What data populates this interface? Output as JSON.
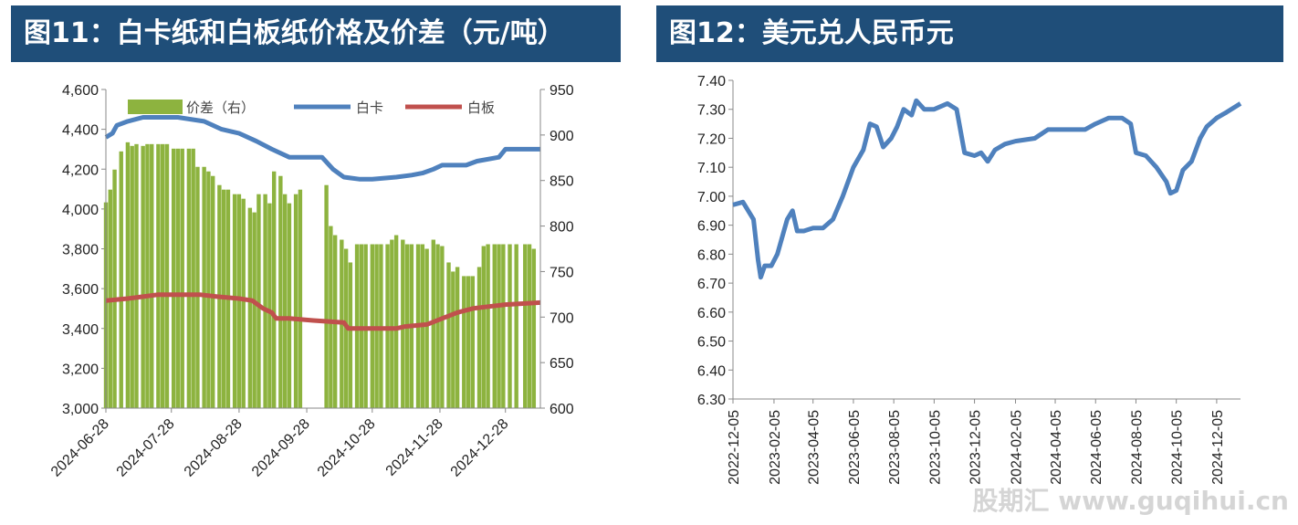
{
  "charts": [
    {
      "title": "图11：白卡纸和白板纸价格及价差（元/吨）",
      "chart_data": {
        "type": "bar+line",
        "title": "图11：白卡纸和白板纸价格及价差（元/吨）",
        "x_ticks": [
          "2024-06-28",
          "2024-07-28",
          "2024-08-28",
          "2024-09-28",
          "2024-10-28",
          "2024-11-28",
          "2024-12-28"
        ],
        "x_range": [
          "2024-06-28",
          "2025-01-13"
        ],
        "y_left": {
          "ticks": [
            "3,000",
            "3,200",
            "3,400",
            "3,600",
            "3,800",
            "4,000",
            "4,200",
            "4,400",
            "4,600"
          ],
          "range": [
            3000,
            4600
          ]
        },
        "y_right": {
          "ticks": [
            "600",
            "650",
            "700",
            "750",
            "800",
            "850",
            "900",
            "950"
          ],
          "range": [
            600,
            950
          ]
        },
        "legend_position": "top",
        "series": [
          {
            "name": "价差（右）",
            "kind": "bar",
            "axis": "right",
            "color": "#8db33f",
            "points": [
              [
                "2024-06-28",
                826
              ],
              [
                "2024-06-30",
                840
              ],
              [
                "2024-07-02",
                862
              ],
              [
                "2024-07-05",
                882
              ],
              [
                "2024-07-08",
                892
              ],
              [
                "2024-07-10",
                888
              ],
              [
                "2024-07-12",
                890
              ],
              [
                "2024-07-15",
                888
              ],
              [
                "2024-07-17",
                890
              ],
              [
                "2024-07-19",
                890
              ],
              [
                "2024-07-22",
                890
              ],
              [
                "2024-07-24",
                890
              ],
              [
                "2024-07-26",
                890
              ],
              [
                "2024-07-29",
                885
              ],
              [
                "2024-07-31",
                885
              ],
              [
                "2024-08-02",
                885
              ],
              [
                "2024-08-05",
                885
              ],
              [
                "2024-08-07",
                885
              ],
              [
                "2024-08-09",
                865
              ],
              [
                "2024-08-12",
                865
              ],
              [
                "2024-08-14",
                860
              ],
              [
                "2024-08-16",
                855
              ],
              [
                "2024-08-19",
                845
              ],
              [
                "2024-08-21",
                840
              ],
              [
                "2024-08-23",
                840
              ],
              [
                "2024-08-26",
                835
              ],
              [
                "2024-08-28",
                835
              ],
              [
                "2024-08-30",
                830
              ],
              [
                "2024-09-02",
                820
              ],
              [
                "2024-09-04",
                815
              ],
              [
                "2024-09-06",
                835
              ],
              [
                "2024-09-09",
                835
              ],
              [
                "2024-09-11",
                825
              ],
              [
                "2024-09-13",
                860
              ],
              [
                "2024-09-16",
                855
              ],
              [
                "2024-09-18",
                835
              ],
              [
                "2024-09-20",
                825
              ],
              [
                "2024-09-23",
                835
              ],
              [
                "2024-09-25",
                840
              ],
              [
                "2024-10-07",
                845
              ],
              [
                "2024-10-09",
                800
              ],
              [
                "2024-10-11",
                790
              ],
              [
                "2024-10-14",
                785
              ],
              [
                "2024-10-16",
                775
              ],
              [
                "2024-10-18",
                760
              ],
              [
                "2024-10-21",
                780
              ],
              [
                "2024-10-23",
                780
              ],
              [
                "2024-10-25",
                780
              ],
              [
                "2024-10-28",
                780
              ],
              [
                "2024-10-30",
                780
              ],
              [
                "2024-11-01",
                780
              ],
              [
                "2024-11-04",
                780
              ],
              [
                "2024-11-06",
                785
              ],
              [
                "2024-11-08",
                790
              ],
              [
                "2024-11-11",
                785
              ],
              [
                "2024-11-13",
                780
              ],
              [
                "2024-11-15",
                780
              ],
              [
                "2024-11-18",
                780
              ],
              [
                "2024-11-20",
                780
              ],
              [
                "2024-11-22",
                775
              ],
              [
                "2024-11-25",
                785
              ],
              [
                "2024-11-27",
                780
              ],
              [
                "2024-11-29",
                778
              ],
              [
                "2024-12-02",
                760
              ],
              [
                "2024-12-04",
                750
              ],
              [
                "2024-12-06",
                755
              ],
              [
                "2024-12-09",
                745
              ],
              [
                "2024-12-11",
                745
              ],
              [
                "2024-12-13",
                745
              ],
              [
                "2024-12-16",
                755
              ],
              [
                "2024-12-18",
                778
              ],
              [
                "2024-12-20",
                780
              ],
              [
                "2024-12-23",
                780
              ],
              [
                "2024-12-25",
                780
              ],
              [
                "2024-12-27",
                780
              ],
              [
                "2024-12-30",
                780
              ],
              [
                "2025-01-02",
                780
              ],
              [
                "2025-01-06",
                780
              ],
              [
                "2025-01-08",
                780
              ],
              [
                "2025-01-10",
                775
              ]
            ]
          },
          {
            "name": "白卡",
            "kind": "line",
            "axis": "left",
            "color": "#4f81bd",
            "points": [
              [
                "2024-06-28",
                4360
              ],
              [
                "2024-07-01",
                4380
              ],
              [
                "2024-07-03",
                4420
              ],
              [
                "2024-07-08",
                4440
              ],
              [
                "2024-07-15",
                4460
              ],
              [
                "2024-07-31",
                4460
              ],
              [
                "2024-08-12",
                4440
              ],
              [
                "2024-08-20",
                4400
              ],
              [
                "2024-08-28",
                4380
              ],
              [
                "2024-09-05",
                4340
              ],
              [
                "2024-09-12",
                4300
              ],
              [
                "2024-09-20",
                4260
              ],
              [
                "2024-09-25",
                4260
              ],
              [
                "2024-10-05",
                4260
              ],
              [
                "2024-10-10",
                4200
              ],
              [
                "2024-10-15",
                4160
              ],
              [
                "2024-10-22",
                4150
              ],
              [
                "2024-10-28",
                4150
              ],
              [
                "2024-11-08",
                4160
              ],
              [
                "2024-11-15",
                4170
              ],
              [
                "2024-11-20",
                4180
              ],
              [
                "2024-11-25",
                4200
              ],
              [
                "2024-11-29",
                4220
              ],
              [
                "2024-12-10",
                4220
              ],
              [
                "2024-12-15",
                4240
              ],
              [
                "2024-12-25",
                4260
              ],
              [
                "2024-12-28",
                4300
              ],
              [
                "2025-01-13",
                4300
              ]
            ]
          },
          {
            "name": "白板",
            "kind": "line",
            "axis": "left",
            "color": "#c0504d",
            "points": [
              [
                "2024-06-28",
                3540
              ],
              [
                "2024-07-08",
                3550
              ],
              [
                "2024-07-15",
                3560
              ],
              [
                "2024-07-22",
                3570
              ],
              [
                "2024-08-10",
                3570
              ],
              [
                "2024-08-18",
                3560
              ],
              [
                "2024-08-28",
                3550
              ],
              [
                "2024-09-03",
                3540
              ],
              [
                "2024-09-08",
                3500
              ],
              [
                "2024-09-12",
                3480
              ],
              [
                "2024-09-14",
                3450
              ],
              [
                "2024-09-20",
                3450
              ],
              [
                "2024-10-01",
                3440
              ],
              [
                "2024-10-15",
                3430
              ],
              [
                "2024-10-17",
                3400
              ],
              [
                "2024-11-08",
                3400
              ],
              [
                "2024-11-12",
                3410
              ],
              [
                "2024-11-22",
                3420
              ],
              [
                "2024-11-29",
                3450
              ],
              [
                "2024-12-06",
                3480
              ],
              [
                "2024-12-13",
                3500
              ],
              [
                "2024-12-20",
                3510
              ],
              [
                "2024-12-28",
                3520
              ],
              [
                "2025-01-13",
                3530
              ]
            ]
          }
        ]
      }
    },
    {
      "title": "图12：美元兑人民币元",
      "chart_data": {
        "type": "line",
        "title": "图12：美元兑人民币元",
        "x_ticks": [
          "2022-12-05",
          "2023-02-05",
          "2023-04-05",
          "2023-06-05",
          "2023-08-05",
          "2023-10-05",
          "2023-12-05",
          "2024-02-05",
          "2024-04-05",
          "2024-06-05",
          "2024-08-05",
          "2024-10-05",
          "2024-12-05"
        ],
        "x_range": [
          "2022-12-05",
          "2025-01-10"
        ],
        "y": {
          "ticks": [
            "6.30",
            "6.40",
            "6.50",
            "6.60",
            "6.70",
            "6.80",
            "6.90",
            "7.00",
            "7.10",
            "7.20",
            "7.30",
            "7.40"
          ],
          "range": [
            6.3,
            7.4
          ]
        },
        "series": [
          {
            "name": "",
            "kind": "line",
            "axis": "left",
            "color": "#4f81bd",
            "points": [
              [
                "2022-12-05",
                6.97
              ],
              [
                "2022-12-20",
                6.98
              ],
              [
                "2023-01-05",
                6.92
              ],
              [
                "2023-01-12",
                6.78
              ],
              [
                "2023-01-16",
                6.72
              ],
              [
                "2023-01-22",
                6.76
              ],
              [
                "2023-02-01",
                6.76
              ],
              [
                "2023-02-10",
                6.8
              ],
              [
                "2023-02-25",
                6.92
              ],
              [
                "2023-03-05",
                6.95
              ],
              [
                "2023-03-12",
                6.88
              ],
              [
                "2023-03-22",
                6.88
              ],
              [
                "2023-04-05",
                6.89
              ],
              [
                "2023-04-20",
                6.89
              ],
              [
                "2023-05-05",
                6.92
              ],
              [
                "2023-05-20",
                7.0
              ],
              [
                "2023-06-05",
                7.1
              ],
              [
                "2023-06-20",
                7.16
              ],
              [
                "2023-06-30",
                7.25
              ],
              [
                "2023-07-10",
                7.24
              ],
              [
                "2023-07-20",
                7.17
              ],
              [
                "2023-08-01",
                7.2
              ],
              [
                "2023-08-10",
                7.24
              ],
              [
                "2023-08-20",
                7.3
              ],
              [
                "2023-09-01",
                7.28
              ],
              [
                "2023-09-08",
                7.33
              ],
              [
                "2023-09-20",
                7.3
              ],
              [
                "2023-10-05",
                7.3
              ],
              [
                "2023-10-25",
                7.32
              ],
              [
                "2023-11-08",
                7.3
              ],
              [
                "2023-11-20",
                7.15
              ],
              [
                "2023-12-05",
                7.14
              ],
              [
                "2023-12-15",
                7.15
              ],
              [
                "2023-12-25",
                7.12
              ],
              [
                "2024-01-05",
                7.16
              ],
              [
                "2024-01-20",
                7.18
              ],
              [
                "2024-02-05",
                7.19
              ],
              [
                "2024-03-05",
                7.2
              ],
              [
                "2024-03-25",
                7.23
              ],
              [
                "2024-04-05",
                7.23
              ],
              [
                "2024-05-05",
                7.23
              ],
              [
                "2024-05-20",
                7.23
              ],
              [
                "2024-06-05",
                7.25
              ],
              [
                "2024-06-25",
                7.27
              ],
              [
                "2024-07-15",
                7.27
              ],
              [
                "2024-07-28",
                7.25
              ],
              [
                "2024-08-05",
                7.15
              ],
              [
                "2024-08-20",
                7.14
              ],
              [
                "2024-09-05",
                7.1
              ],
              [
                "2024-09-20",
                7.05
              ],
              [
                "2024-09-26",
                7.01
              ],
              [
                "2024-10-05",
                7.02
              ],
              [
                "2024-10-15",
                7.09
              ],
              [
                "2024-10-28",
                7.12
              ],
              [
                "2024-11-10",
                7.2
              ],
              [
                "2024-11-20",
                7.24
              ],
              [
                "2024-12-05",
                7.27
              ],
              [
                "2024-12-20",
                7.29
              ],
              [
                "2025-01-10",
                7.32
              ]
            ]
          }
        ]
      }
    }
  ],
  "watermark": "股期汇 www.guqihui.cn"
}
